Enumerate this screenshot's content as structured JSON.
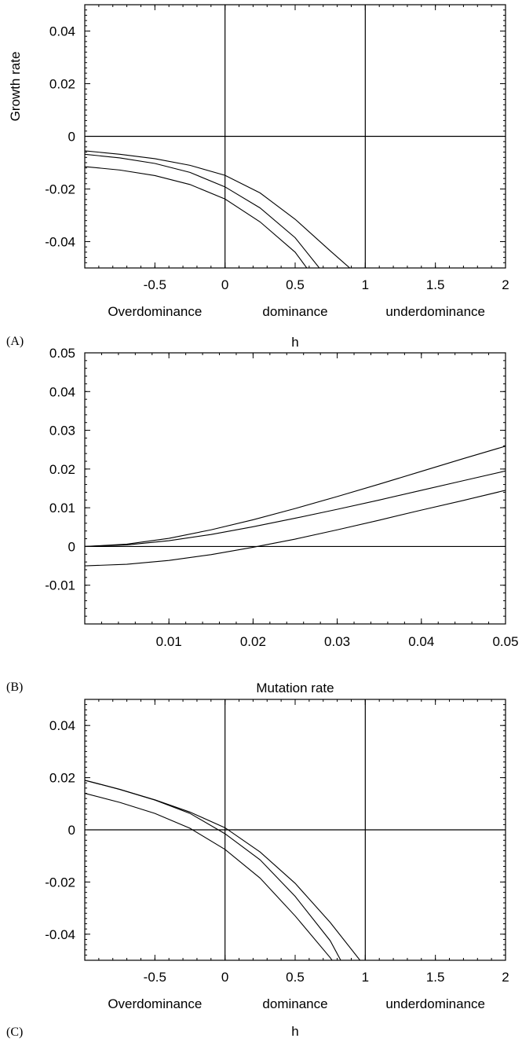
{
  "chart_data": [
    {
      "panel_label": "(A)",
      "type": "line",
      "xlabel": "h",
      "ylabel": "Growth rate",
      "xlim": [
        -1,
        2
      ],
      "ylim": [
        -0.05,
        0.05
      ],
      "x_ticks": [
        -0.5,
        0,
        0.5,
        1,
        1.5,
        2
      ],
      "x_tick_labels": [
        "-0.5",
        "0",
        "0.5",
        "1",
        "1.5",
        "2"
      ],
      "y_ticks": [
        -0.04,
        -0.02,
        0,
        0.02,
        0.04
      ],
      "y_tick_labels": [
        "-0.04",
        "-0.02",
        "0",
        "0.02",
        "0.04"
      ],
      "region_labels": [
        {
          "text": "Overdominance",
          "x": -0.5
        },
        {
          "text": "dominance",
          "x": 0.5
        },
        {
          "text": "underdominance",
          "x": 1.5
        }
      ],
      "reference_lines": {
        "vertical": [
          0,
          1
        ],
        "horizontal": [
          0
        ]
      },
      "series": [
        {
          "x": [
            -1,
            -0.75,
            -0.5,
            -0.25,
            0,
            0.25,
            0.5,
            0.75,
            0.9
          ],
          "values": [
            -0.0055,
            -0.0068,
            -0.0085,
            -0.011,
            -0.0148,
            -0.0215,
            -0.0315,
            -0.0435,
            -0.0505
          ]
        },
        {
          "x": [
            -1,
            -0.75,
            -0.5,
            -0.25,
            0,
            0.25,
            0.5,
            0.68
          ],
          "values": [
            -0.0068,
            -0.0082,
            -0.0103,
            -0.0137,
            -0.0192,
            -0.0272,
            -0.0385,
            -0.0505
          ]
        },
        {
          "x": [
            -1,
            -0.75,
            -0.5,
            -0.25,
            0,
            0.25,
            0.5,
            0.59
          ],
          "values": [
            -0.0115,
            -0.0128,
            -0.0149,
            -0.0183,
            -0.0238,
            -0.0325,
            -0.044,
            -0.0505
          ]
        }
      ]
    },
    {
      "panel_label": "(B)",
      "type": "line",
      "xlabel": "Mutation rate",
      "ylabel": "",
      "xlim": [
        0,
        0.05
      ],
      "ylim": [
        -0.02,
        0.05
      ],
      "x_ticks": [
        0.01,
        0.02,
        0.03,
        0.04,
        0.05
      ],
      "x_tick_labels": [
        "0.01",
        "0.02",
        "0.03",
        "0.04",
        "0.05"
      ],
      "y_ticks": [
        -0.01,
        0,
        0.01,
        0.02,
        0.03,
        0.04,
        0.05
      ],
      "y_tick_labels": [
        "-0.01",
        "0",
        "0.01",
        "0.02",
        "0.03",
        "0.04",
        "0.05"
      ],
      "reference_lines": {
        "vertical": [],
        "horizontal": [
          0
        ]
      },
      "series": [
        {
          "x": [
            0,
            0.005,
            0.01,
            0.015,
            0.02,
            0.025,
            0.03,
            0.035,
            0.04,
            0.045,
            0.05
          ],
          "values": [
            0,
            0.0006,
            0.0021,
            0.0043,
            0.0069,
            0.0098,
            0.0129,
            0.0161,
            0.0194,
            0.0227,
            0.0259
          ]
        },
        {
          "x": [
            0,
            0.005,
            0.01,
            0.015,
            0.02,
            0.025,
            0.03,
            0.035,
            0.04,
            0.045,
            0.05
          ],
          "values": [
            0,
            0.0004,
            0.0015,
            0.0031,
            0.0051,
            0.0073,
            0.0096,
            0.012,
            0.0145,
            0.017,
            0.0195
          ]
        },
        {
          "x": [
            0,
            0.005,
            0.01,
            0.015,
            0.02,
            0.025,
            0.03,
            0.035,
            0.04,
            0.045,
            0.05
          ],
          "values": [
            -0.005,
            -0.0046,
            -0.0036,
            -0.0021,
            -0.0002,
            0.0019,
            0.0043,
            0.0068,
            0.0094,
            0.0119,
            0.0145
          ]
        }
      ]
    },
    {
      "panel_label": "(C)",
      "type": "line",
      "xlabel": "h",
      "ylabel": "",
      "xlim": [
        -1,
        2
      ],
      "ylim": [
        -0.05,
        0.05
      ],
      "x_ticks": [
        -0.5,
        0,
        0.5,
        1,
        1.5,
        2
      ],
      "x_tick_labels": [
        "-0.5",
        "0",
        "0.5",
        "1",
        "1.5",
        "2"
      ],
      "y_ticks": [
        -0.04,
        -0.02,
        0,
        0.02,
        0.04
      ],
      "y_tick_labels": [
        "-0.04",
        "-0.02",
        "0",
        "0.02",
        "0.04"
      ],
      "region_labels": [
        {
          "text": "Overdominance",
          "x": -0.5
        },
        {
          "text": "dominance",
          "x": 0.5
        },
        {
          "text": "underdominance",
          "x": 1.5
        }
      ],
      "reference_lines": {
        "vertical": [
          0,
          1
        ],
        "horizontal": [
          0
        ]
      },
      "series": [
        {
          "x": [
            -1,
            -0.75,
            -0.5,
            -0.25,
            0,
            0.25,
            0.5,
            0.75,
            0.97
          ],
          "values": [
            0.019,
            0.0155,
            0.0115,
            0.0068,
            0.0008,
            -0.0085,
            -0.0205,
            -0.0355,
            -0.0505
          ]
        },
        {
          "x": [
            -1,
            -0.75,
            -0.5,
            -0.25,
            0,
            0.25,
            0.5,
            0.75,
            0.83
          ],
          "values": [
            0.019,
            0.0155,
            0.0114,
            0.0063,
            -0.0015,
            -0.0115,
            -0.0255,
            -0.0425,
            -0.0505
          ]
        },
        {
          "x": [
            -1,
            -0.75,
            -0.5,
            -0.25,
            0,
            0.25,
            0.5,
            0.75,
            0.77
          ],
          "values": [
            0.014,
            0.0105,
            0.0063,
            0.0006,
            -0.0075,
            -0.0185,
            -0.033,
            -0.049,
            -0.0505
          ]
        }
      ]
    }
  ]
}
